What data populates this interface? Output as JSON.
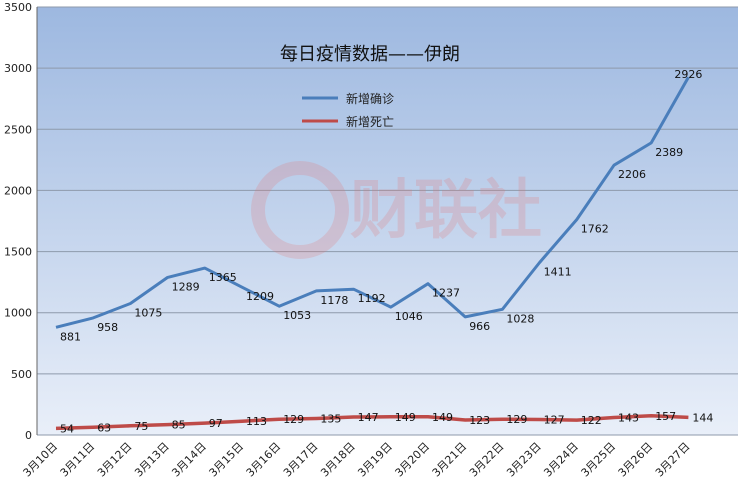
{
  "chart_data": {
    "type": "line",
    "title": "每日疫情数据——伊朗",
    "categories": [
      "3月10日",
      "3月11日",
      "3月12日",
      "3月13日",
      "3月14日",
      "3月15日",
      "3月16日",
      "3月17日",
      "3月18日",
      "3月19日",
      "3月20日",
      "3月21日",
      "3月22日",
      "3月23日",
      "3月24日",
      "3月25日",
      "3月26日",
      "3月27日"
    ],
    "series": [
      {
        "name": "新增确诊",
        "color": "#4A7EBB",
        "values": [
          881,
          958,
          1075,
          1289,
          1365,
          1209,
          1053,
          1178,
          1192,
          1046,
          1237,
          966,
          1028,
          1411,
          1762,
          2206,
          2389,
          2926
        ]
      },
      {
        "name": "新增死亡",
        "color": "#BE4B48",
        "values": [
          54,
          63,
          75,
          85,
          97,
          113,
          129,
          135,
          147,
          149,
          149,
          123,
          129,
          127,
          122,
          143,
          157,
          144
        ]
      }
    ],
    "ylim": [
      0,
      3500
    ],
    "yticks": [
      0,
      500,
      1000,
      1500,
      2000,
      2500,
      3000,
      3500
    ],
    "grid": true,
    "legend_position": "upper-center",
    "watermark": "财联社"
  }
}
